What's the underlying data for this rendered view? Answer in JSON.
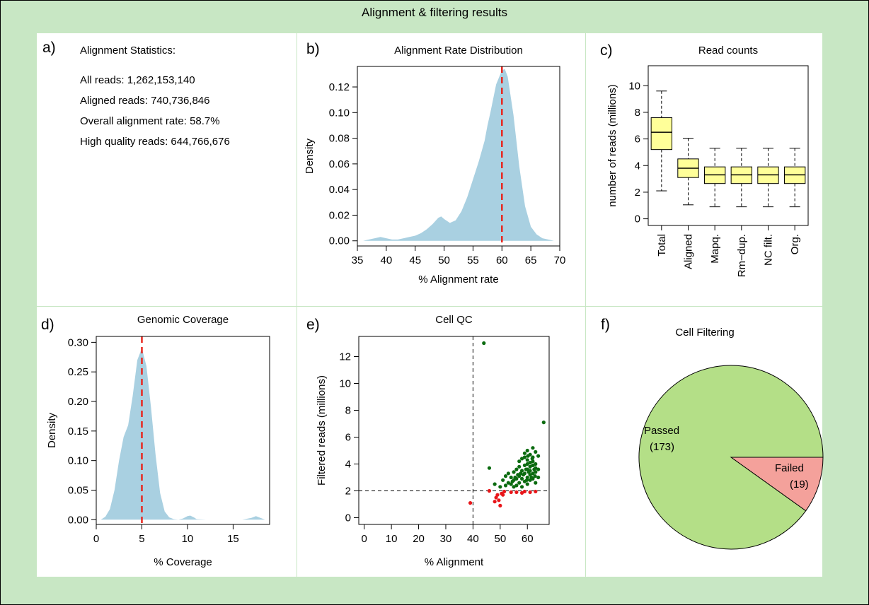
{
  "page": {
    "title": "Alignment & filtering results"
  },
  "panels": {
    "a": {
      "letter": "a)",
      "heading": "Alignment Statistics:",
      "lines": [
        "All reads: 1,262,153,140",
        "Aligned reads: 740,736,846",
        "Overall alignment rate: 58.7%",
        "High quality reads: 644,766,676"
      ]
    },
    "b": {
      "letter": "b)"
    },
    "c": {
      "letter": "c)"
    },
    "d": {
      "letter": "d)"
    },
    "e": {
      "letter": "e)"
    },
    "f": {
      "letter": "f)"
    }
  },
  "colors": {
    "density_fill": "#a9d0e1",
    "mean_line": "#e8261e",
    "box_fill": "#ffff99",
    "passed": "#b4df87",
    "failed": "#f4a19b",
    "pass_point": "#0b6b10",
    "fail_point": "#e8161a",
    "panel_bg": "#ffffff",
    "frame_bg": "#c8e7c4"
  },
  "chart_data": [
    {
      "id": "b",
      "type": "area",
      "title": "Alignment Rate Distribution",
      "xlabel": "% Alignment rate",
      "ylabel": "Density",
      "xlim": [
        35,
        70
      ],
      "ylim": [
        -0.004,
        0.136
      ],
      "xticks": [
        35,
        40,
        45,
        50,
        55,
        60,
        65,
        70
      ],
      "yticks": [
        0.0,
        0.02,
        0.04,
        0.06,
        0.08,
        0.1,
        0.12
      ],
      "ytick_labels": [
        "0.00",
        "0.02",
        "0.04",
        "0.06",
        "0.08",
        "0.10",
        "0.12"
      ],
      "x": [
        36,
        37,
        38,
        39,
        40,
        41,
        42,
        43,
        44,
        45,
        46,
        47,
        48,
        49,
        49.5,
        50,
        51,
        52,
        53,
        54,
        55,
        56,
        57,
        57.5,
        58,
        59,
        60,
        60.5,
        61,
        62,
        63,
        64,
        65,
        66,
        67,
        68,
        69
      ],
      "y": [
        0.0,
        0.001,
        0.002,
        0.003,
        0.002,
        0.001,
        0.001,
        0.002,
        0.003,
        0.004,
        0.006,
        0.009,
        0.013,
        0.018,
        0.019,
        0.017,
        0.014,
        0.016,
        0.023,
        0.034,
        0.048,
        0.062,
        0.078,
        0.09,
        0.1,
        0.122,
        0.133,
        0.134,
        0.128,
        0.098,
        0.058,
        0.027,
        0.011,
        0.005,
        0.002,
        0.001,
        0.0
      ],
      "vline": 60,
      "grid": false,
      "legend": "none"
    },
    {
      "id": "c",
      "type": "box",
      "title": "Read counts",
      "ylabel": "number of reads (millions)",
      "ylim": [
        -0.5,
        11.5
      ],
      "yticks": [
        0,
        2,
        4,
        6,
        8,
        10
      ],
      "categories": [
        "Total",
        "Aligned",
        "Mapq.",
        "Rm−dup.",
        "NC filt.",
        "Org."
      ],
      "whisker_low": [
        2.1,
        1.05,
        0.9,
        0.9,
        0.9,
        0.9
      ],
      "q1": [
        5.2,
        3.1,
        2.65,
        2.65,
        2.65,
        2.65
      ],
      "median": [
        6.5,
        3.8,
        3.3,
        3.3,
        3.3,
        3.3
      ],
      "q3": [
        7.6,
        4.5,
        3.9,
        3.9,
        3.9,
        3.9
      ],
      "whisker_high": [
        9.6,
        6.05,
        5.3,
        5.3,
        5.3,
        5.3
      ],
      "grid": false,
      "legend": "none"
    },
    {
      "id": "d",
      "type": "area",
      "title": "Genomic Coverage",
      "xlabel": "% Coverage",
      "ylabel": "Density",
      "xlim": [
        0,
        19
      ],
      "ylim": [
        -0.008,
        0.31
      ],
      "xticks": [
        0,
        5,
        10,
        15
      ],
      "yticks": [
        0.0,
        0.05,
        0.1,
        0.15,
        0.2,
        0.25,
        0.3
      ],
      "ytick_labels": [
        "0.00",
        "0.05",
        "0.10",
        "0.15",
        "0.20",
        "0.25",
        "0.30"
      ],
      "x": [
        0.5,
        1,
        1.5,
        2,
        2.5,
        3,
        3.5,
        4,
        4.5,
        5,
        5.5,
        6,
        6.5,
        7,
        7.5,
        8,
        8.5,
        9,
        9.5,
        10,
        10.3,
        10.7,
        11,
        12,
        13,
        14,
        15,
        16,
        17,
        17.5,
        18,
        18.5
      ],
      "y": [
        0.0,
        0.005,
        0.018,
        0.05,
        0.1,
        0.14,
        0.16,
        0.21,
        0.27,
        0.29,
        0.26,
        0.19,
        0.11,
        0.045,
        0.014,
        0.004,
        0.001,
        0.0,
        0.002,
        0.006,
        0.007,
        0.004,
        0.001,
        0.0,
        0.0,
        0.0,
        0.0,
        0.0,
        0.003,
        0.006,
        0.003,
        0.0
      ],
      "vline": 5,
      "grid": false,
      "legend": "none"
    },
    {
      "id": "e",
      "type": "scatter",
      "title": "Cell QC",
      "xlabel": "% Alignment",
      "ylabel": "Filtered reads (millions)",
      "xlim": [
        -2,
        68
      ],
      "ylim": [
        -0.5,
        13.5
      ],
      "xticks": [
        0,
        10,
        20,
        30,
        40,
        50,
        60
      ],
      "yticks": [
        0,
        2,
        4,
        6,
        8,
        10,
        12
      ],
      "thresholds": {
        "x": 40,
        "y": 2
      },
      "failed_points": [
        [
          39,
          1.1
        ],
        [
          46,
          2.0
        ],
        [
          48,
          1.2
        ],
        [
          48.5,
          1.5
        ],
        [
          49,
          1.7
        ],
        [
          49.5,
          1.3
        ],
        [
          50,
          0.9
        ],
        [
          50.5,
          1.8
        ],
        [
          51,
          1.7
        ],
        [
          54,
          1.9
        ],
        [
          56,
          1.9
        ],
        [
          58,
          1.85
        ],
        [
          59,
          1.95
        ],
        [
          61,
          1.9
        ],
        [
          63,
          1.95
        ],
        [
          51.5,
          1.95
        ]
      ],
      "passed_points": [
        [
          44,
          13.0
        ],
        [
          66,
          7.1
        ],
        [
          46,
          3.7
        ],
        [
          48,
          2.5
        ],
        [
          50,
          2.3
        ],
        [
          51,
          2.8
        ],
        [
          52,
          3.1
        ],
        [
          52,
          2.4
        ],
        [
          53,
          2.6
        ],
        [
          53,
          3.3
        ],
        [
          54,
          2.5
        ],
        [
          54,
          3.0
        ],
        [
          55,
          3.4
        ],
        [
          55,
          2.8
        ],
        [
          55,
          2.3
        ],
        [
          56,
          3.6
        ],
        [
          56,
          2.9
        ],
        [
          56,
          2.4
        ],
        [
          57,
          3.8
        ],
        [
          57,
          3.1
        ],
        [
          57,
          2.6
        ],
        [
          57,
          4.2
        ],
        [
          58,
          3.5
        ],
        [
          58,
          2.9
        ],
        [
          58,
          4.4
        ],
        [
          58,
          2.3
        ],
        [
          59,
          4.8
        ],
        [
          59,
          3.9
        ],
        [
          59,
          3.3
        ],
        [
          59,
          2.7
        ],
        [
          59,
          4.5
        ],
        [
          60,
          5.0
        ],
        [
          60,
          4.3
        ],
        [
          60,
          3.6
        ],
        [
          60,
          3.0
        ],
        [
          60,
          2.5
        ],
        [
          60,
          4.0
        ],
        [
          61,
          4.7
        ],
        [
          61,
          3.8
        ],
        [
          61,
          3.2
        ],
        [
          61,
          2.8
        ],
        [
          61,
          4.1
        ],
        [
          61,
          3.5
        ],
        [
          62,
          5.2
        ],
        [
          62,
          4.5
        ],
        [
          62,
          3.9
        ],
        [
          62,
          3.3
        ],
        [
          62,
          2.9
        ],
        [
          62,
          4.2
        ],
        [
          63,
          4.9
        ],
        [
          63,
          4.0
        ],
        [
          63,
          3.4
        ],
        [
          63,
          2.6
        ],
        [
          63,
          3.7
        ],
        [
          64,
          4.6
        ],
        [
          64,
          3.6
        ],
        [
          64,
          3.0
        ],
        [
          59.5,
          3.6
        ],
        [
          60.5,
          3.4
        ],
        [
          61.5,
          3.0
        ],
        [
          58.5,
          3.2
        ],
        [
          57.5,
          3.3
        ],
        [
          56.5,
          3.2
        ],
        [
          54.5,
          2.7
        ],
        [
          60.2,
          4.6
        ],
        [
          61.8,
          4.4
        ],
        [
          62.5,
          3.6
        ],
        [
          59.8,
          2.8
        ],
        [
          55.5,
          3.0
        ],
        [
          62.8,
          3.1
        ]
      ],
      "grid": false,
      "legend": "none"
    },
    {
      "id": "f",
      "type": "pie",
      "title": "Cell Filtering",
      "slices": [
        {
          "label": "Passed",
          "count_label": "(173)",
          "value": 173
        },
        {
          "label": "Failed",
          "count_label": "(19)",
          "value": 19
        }
      ],
      "legend": "none"
    }
  ]
}
